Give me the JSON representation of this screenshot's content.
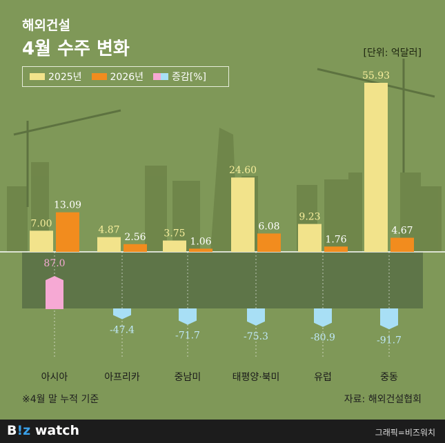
{
  "header": {
    "line1": "해외건설",
    "line2": "4월 수주 변화",
    "unit": "[단위: 억달러]"
  },
  "legend": {
    "y2025": "2025년",
    "y2026": "2026년",
    "change": "증감[%]"
  },
  "colors": {
    "y2025": "#f2e38b",
    "y2026": "#f28c1e",
    "increase": "#f6a9d4",
    "decrease": "#a8dff5",
    "background": "#7f9858"
  },
  "chart_data": {
    "type": "bar",
    "categories": [
      "아시아",
      "아프리카",
      "중남미",
      "태평양·북미",
      "유럽",
      "중동"
    ],
    "series": [
      {
        "name": "2025년",
        "values": [
          7.0,
          4.87,
          3.75,
          24.6,
          9.23,
          55.93
        ]
      },
      {
        "name": "2026년",
        "values": [
          13.09,
          2.56,
          1.06,
          6.08,
          1.76,
          4.67
        ]
      },
      {
        "name": "증감[%]",
        "values": [
          87.0,
          -47.4,
          -71.7,
          -75.3,
          -80.9,
          -91.7
        ]
      }
    ],
    "value_labels_2025": [
      "7.00",
      "4.87",
      "3.75",
      "24.60",
      "9.23",
      "55.93"
    ],
    "value_labels_2026": [
      "13.09",
      "2.56",
      "1.06",
      "6.08",
      "1.76",
      "4.67"
    ],
    "change_labels": [
      "87.0",
      "-47.4",
      "-71.7",
      "-75.3",
      "-80.9",
      "-91.7"
    ]
  },
  "footer": {
    "note": "※4월 말 누적 기준",
    "source": "자료: 해외건설협회",
    "logo_a": "B",
    "logo_b": "!z",
    "logo_c": " watch",
    "credit": "그래픽=비즈워치"
  }
}
